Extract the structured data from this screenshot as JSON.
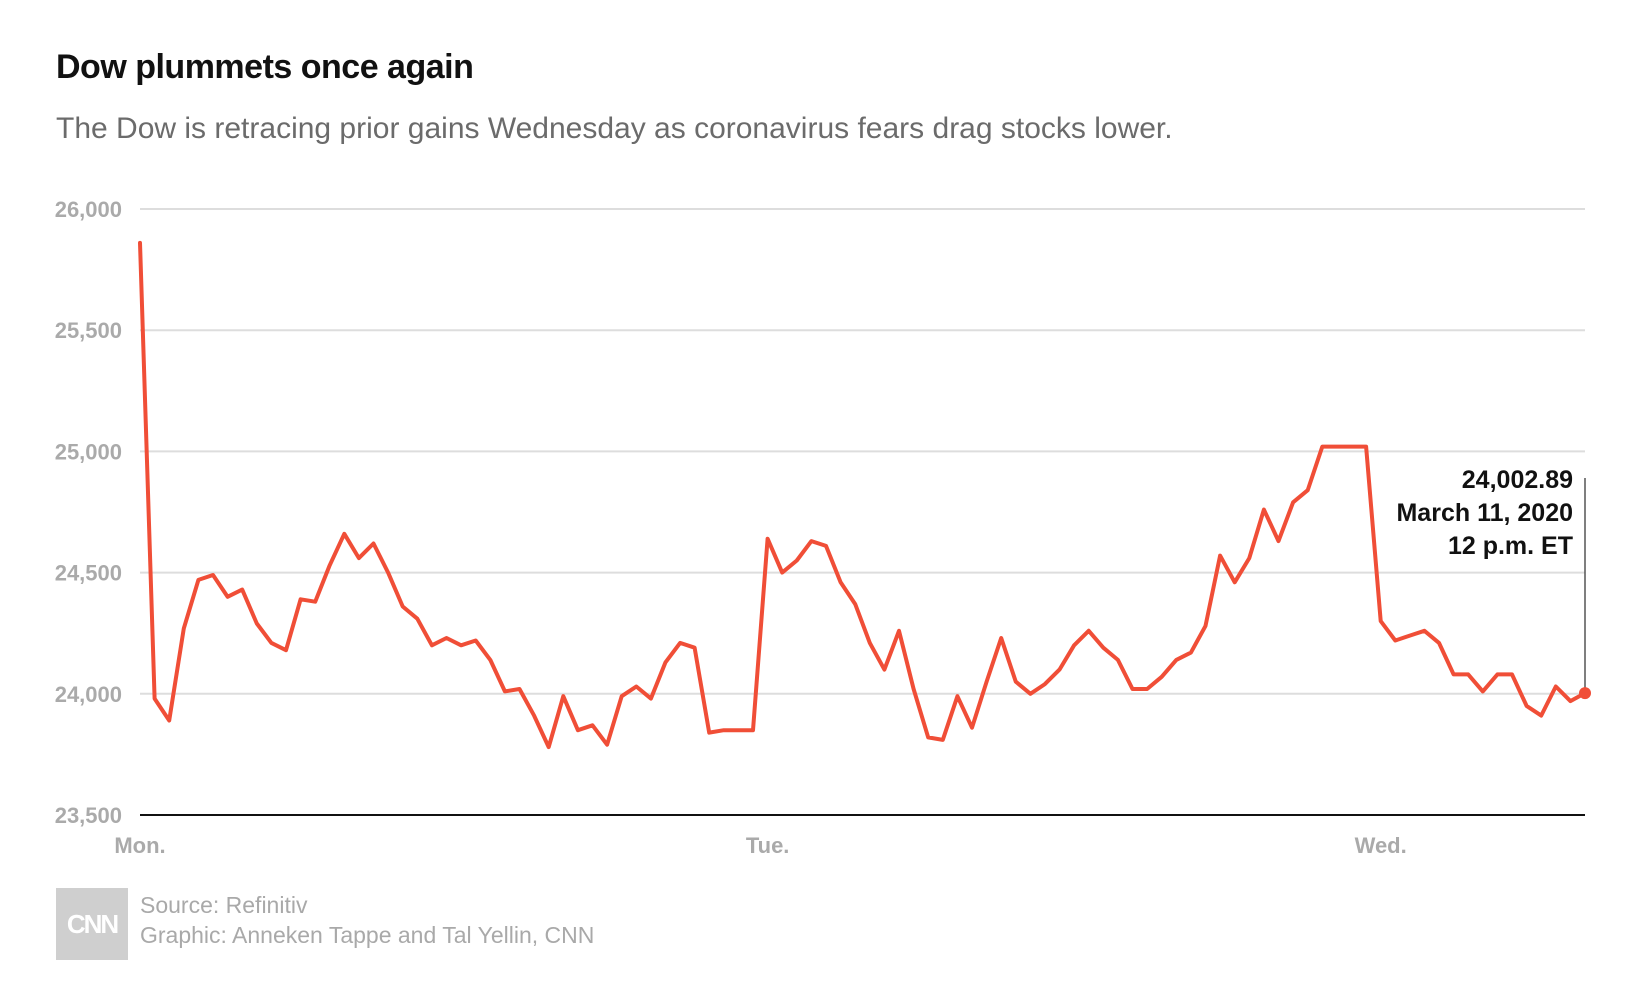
{
  "header": {
    "title": "Dow plummets once again",
    "subtitle": "The Dow is retracing prior gains Wednesday as coronavirus fears drag stocks lower."
  },
  "footer": {
    "logo_text": "CNN",
    "source": "Source: Refinitiv",
    "graphic": "Graphic: Anneken Tappe and Tal Yellin, CNN"
  },
  "colors": {
    "line": "#f04e37",
    "grid": "#dddddd",
    "axis": "#111111",
    "tick_label": "#aaaaaa"
  },
  "chart_data": {
    "type": "line",
    "title": "Dow plummets once again",
    "subtitle": "The Dow is retracing prior gains Wednesday as coronavirus fears drag stocks lower.",
    "xlabel": "",
    "ylabel": "",
    "ylim": [
      23500,
      26000
    ],
    "yticks": [
      23500,
      24000,
      24500,
      25000,
      25500,
      26000
    ],
    "ytick_labels": [
      "23,500",
      "24,000",
      "24,500",
      "25,000",
      "25,500",
      "26,000"
    ],
    "xticks": [
      {
        "index": 0,
        "label": "Mon."
      },
      {
        "index": 43,
        "label": "Tue."
      },
      {
        "index": 85,
        "label": "Wed."
      }
    ],
    "grid": true,
    "series": [
      {
        "values": [
          25860,
          23980,
          23890,
          24270,
          24470,
          24490,
          24400,
          24430,
          24290,
          24210,
          24180,
          24390,
          24380,
          24530,
          24660,
          24560,
          24620,
          24500,
          24360,
          24310,
          24200,
          24230,
          24200,
          24220,
          24140,
          24010,
          24020,
          23910,
          23780,
          23990,
          23850,
          23870,
          23790,
          23990,
          24030,
          23980,
          24130,
          24210,
          24190,
          23840,
          23850,
          23850,
          23850,
          24640,
          24500,
          24550,
          24630,
          24610,
          24460,
          24370,
          24210,
          24100,
          24260,
          24020,
          23820,
          23810,
          23990,
          23860,
          24050,
          24230,
          24050,
          24000,
          24040,
          24100,
          24200,
          24260,
          24190,
          24140,
          24020,
          24020,
          24070,
          24140,
          24170,
          24280,
          24570,
          24460,
          24560,
          24760,
          24630,
          24790,
          24840,
          25020,
          25020,
          25020,
          25020,
          24300,
          24220,
          24240,
          24260,
          24210,
          24080,
          24080,
          24010,
          24080,
          24080,
          23950,
          23910,
          24030,
          23970,
          24002.89
        ]
      }
    ],
    "annotation": {
      "value": "24,002.89",
      "date": "March 11, 2020",
      "time": "12 p.m. ET"
    }
  }
}
